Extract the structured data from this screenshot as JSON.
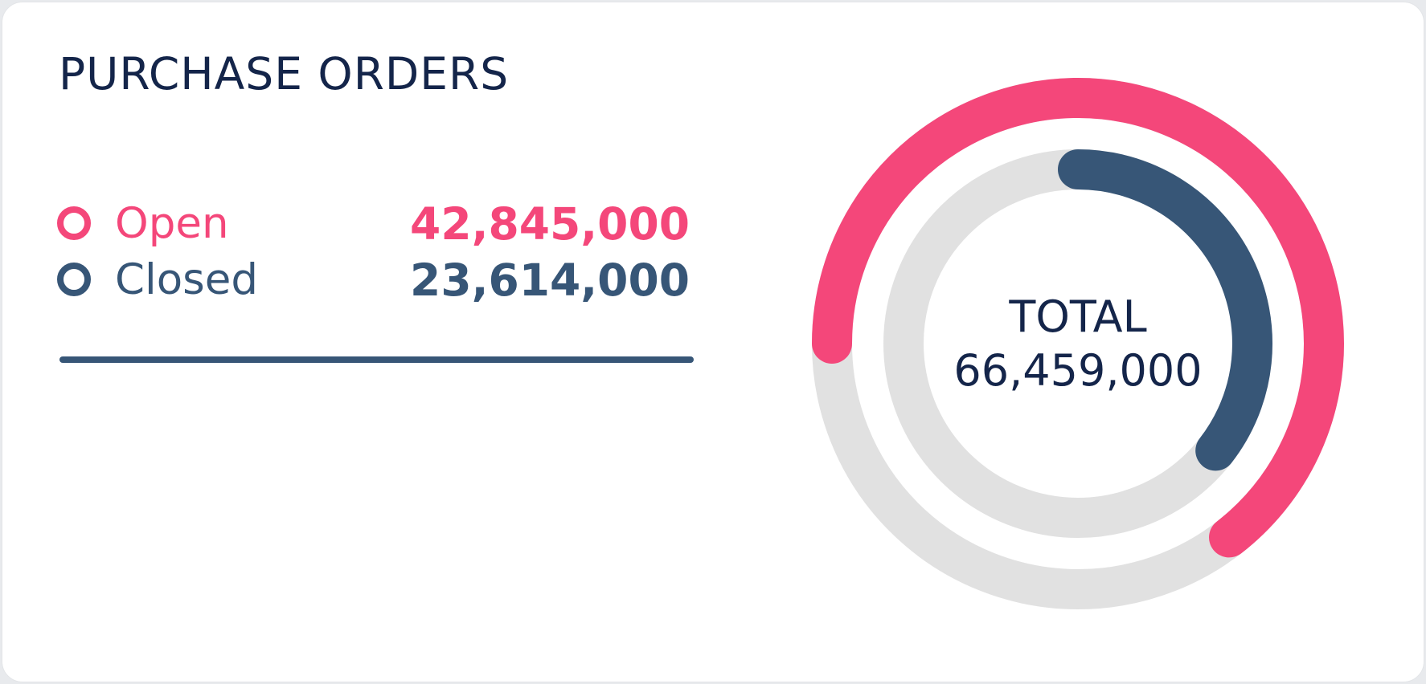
{
  "card": {
    "title": "PURCHASE ORDERS"
  },
  "colors": {
    "open": "#f4477a",
    "closed": "#375677",
    "track": "#e1e1e1",
    "title": "#14254a"
  },
  "chart_data": {
    "type": "donut",
    "title": "PURCHASE ORDERS",
    "center_label": "TOTAL",
    "total": 66459000,
    "total_label": "66,459,000",
    "series": [
      {
        "name": "Open",
        "value": 42845000,
        "value_label": "42,845,000",
        "color": "#f4477a",
        "ring": "outer"
      },
      {
        "name": "Closed",
        "value": 23614000,
        "value_label": "23,614,000",
        "color": "#375677",
        "ring": "inner"
      }
    ],
    "legend_placement": "left"
  }
}
